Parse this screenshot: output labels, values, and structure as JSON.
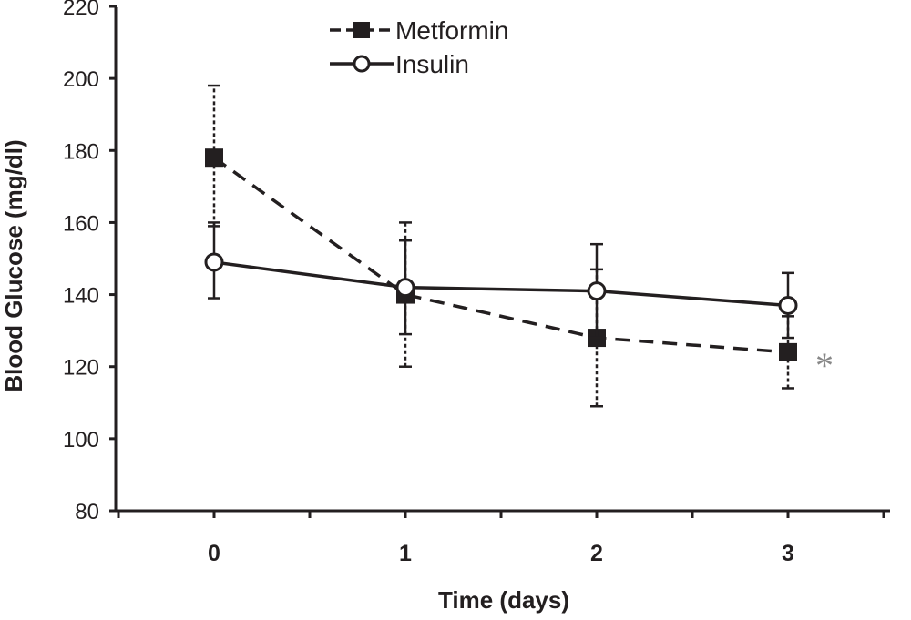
{
  "chart_data": {
    "type": "line",
    "xlabel": "Time (days)",
    "ylabel": "Blood Glucose (mg/dl)",
    "x": [
      0,
      1,
      2,
      3
    ],
    "xticks": [
      "0",
      "1",
      "2",
      "3"
    ],
    "ylim": [
      80,
      220
    ],
    "yticks": [
      "80",
      "100",
      "120",
      "140",
      "160",
      "180",
      "200",
      "220"
    ],
    "grid": false,
    "legend_position": "top-center",
    "series": [
      {
        "name": "Metformin",
        "marker": "filled-square",
        "line_style": "dashed",
        "values": [
          178,
          140,
          128,
          124
        ],
        "error_low": [
          159,
          120,
          109,
          114
        ],
        "error_high": [
          198,
          160,
          147,
          134
        ]
      },
      {
        "name": "Insulin",
        "marker": "open-circle",
        "line_style": "solid",
        "values": [
          149,
          142,
          141,
          137
        ],
        "error_low": [
          139,
          129,
          128,
          128
        ],
        "error_high": [
          160,
          155,
          154,
          146
        ]
      }
    ],
    "annotations": [
      {
        "text": "*",
        "x": 3,
        "y": 123
      }
    ],
    "colors": {
      "ink": "#231f20",
      "annotation": "#888888"
    }
  }
}
